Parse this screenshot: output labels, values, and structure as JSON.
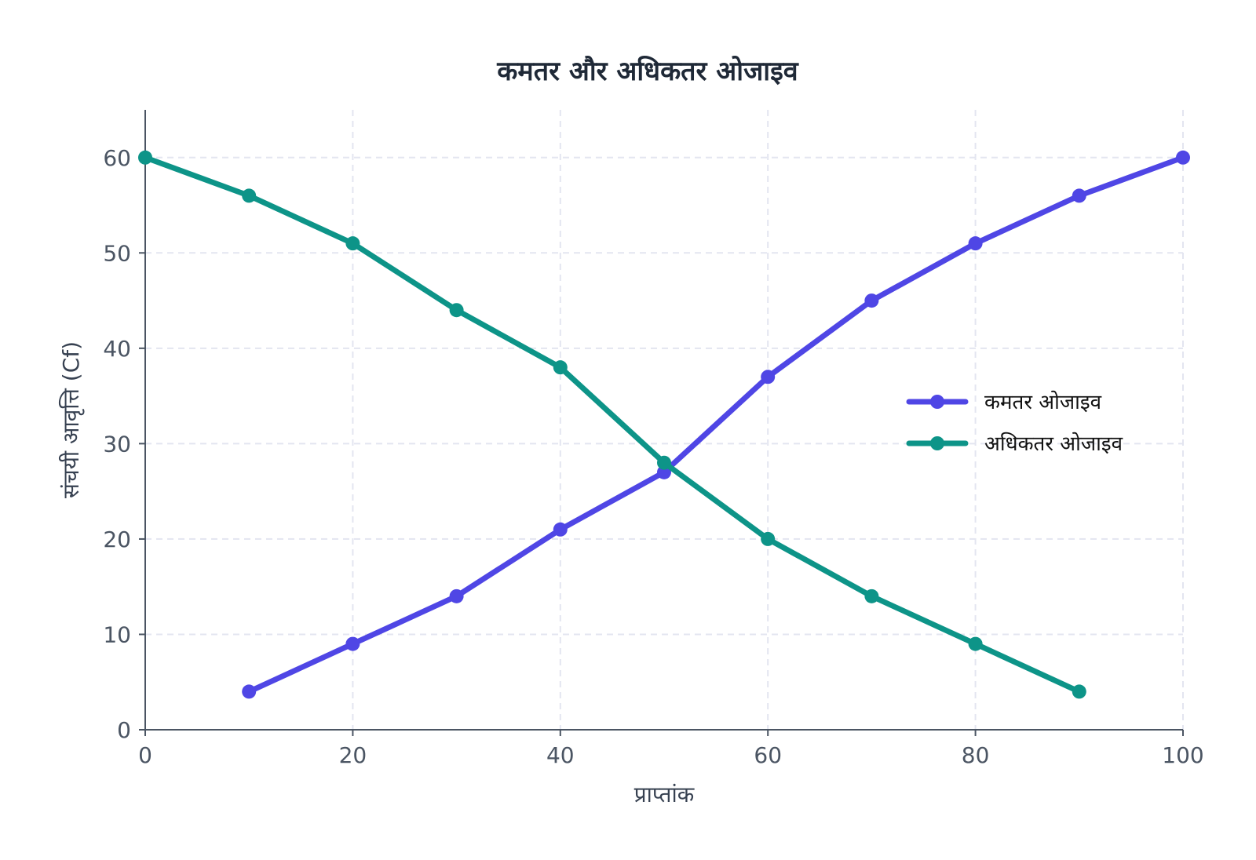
{
  "chart_data": {
    "type": "line",
    "title": "कमतर और अधिकतर ओजाइव",
    "xlabel": "प्राप्तांक",
    "ylabel": "संचयी आवृत्ति (Cf)",
    "xlim": [
      0,
      100
    ],
    "ylim": [
      0,
      65
    ],
    "xticks": [
      0,
      20,
      40,
      60,
      80,
      100
    ],
    "yticks": [
      0,
      10,
      20,
      30,
      40,
      50,
      60
    ],
    "grid": true,
    "legend_position": "right",
    "series": [
      {
        "name": "कमतर ओजाइव",
        "color": "#4f46e5",
        "x": [
          10,
          20,
          30,
          40,
          50,
          60,
          70,
          80,
          90,
          100
        ],
        "y": [
          4,
          9,
          14,
          21,
          27,
          37,
          45,
          51,
          56,
          60
        ]
      },
      {
        "name": "अधिकतर ओजाइव",
        "color": "#0d9488",
        "x": [
          0,
          10,
          20,
          30,
          40,
          50,
          60,
          70,
          80,
          90
        ],
        "y": [
          60,
          56,
          51,
          44,
          38,
          28,
          20,
          14,
          9,
          4
        ]
      }
    ]
  }
}
